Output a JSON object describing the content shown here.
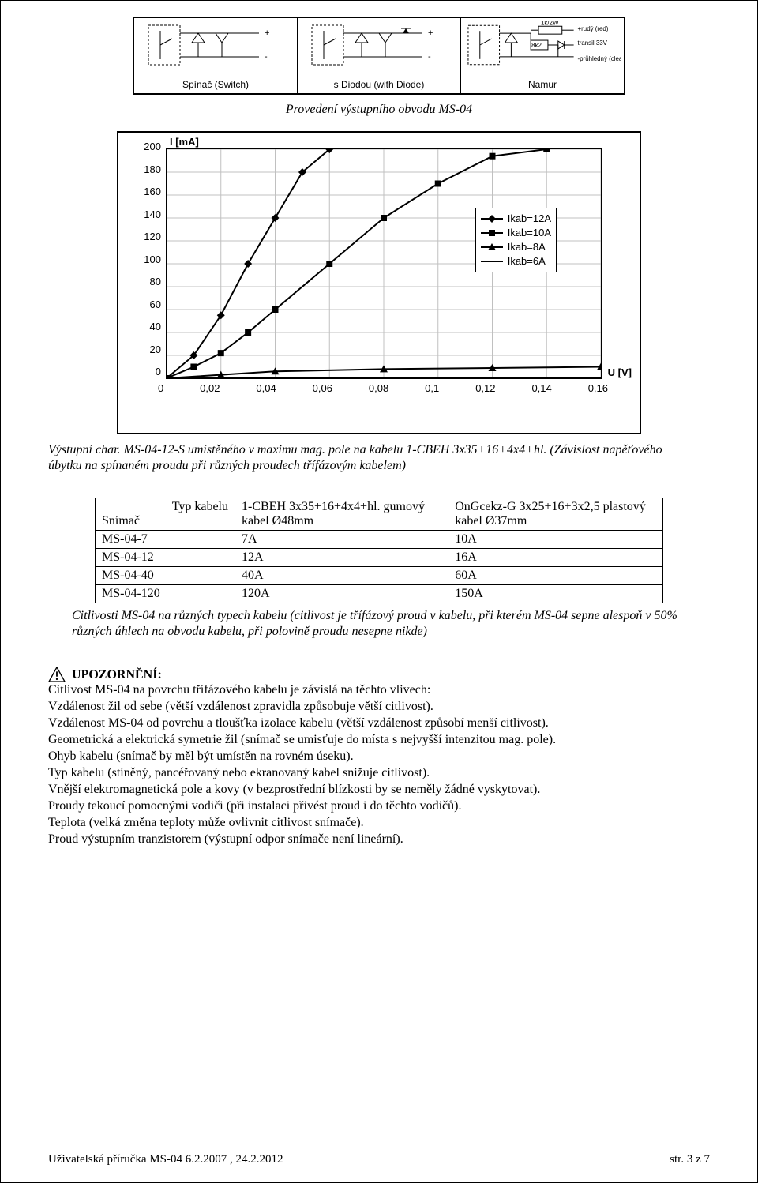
{
  "circuit": {
    "caption": "Provedení výstupního obvodu MS-04",
    "cells": [
      {
        "label": "Spínač (Switch)",
        "plus": "+",
        "minus": "-"
      },
      {
        "label": "s Diodou (with Diode)",
        "plus": "+",
        "minus": "-"
      },
      {
        "label": "Namur",
        "tags": {
          "r": "1k/2W",
          "z": "8k2",
          "d33": "transil 33V",
          "red": "+rudý (red)",
          "clr": "-průhledný (clear)"
        }
      }
    ]
  },
  "chart": {
    "y_axis": {
      "title": "I [mA]",
      "ticks": [
        "200",
        "180",
        "160",
        "140",
        "120",
        "100",
        "80",
        "60",
        "40",
        "20",
        "0"
      ]
    },
    "x_axis": {
      "title": "U [V]",
      "ticks": [
        "0",
        "0,02",
        "0,04",
        "0,06",
        "0,08",
        "0,1",
        "0,12",
        "0,14",
        "0,16"
      ]
    },
    "grid_color": "#c0c0c0",
    "line_color": "#000000",
    "background": "#ffffff",
    "series": [
      {
        "label": "Ikab=12A",
        "marker": "diamond",
        "x": [
          0,
          0.01,
          0.02,
          0.03,
          0.04,
          0.05,
          0.06
        ],
        "y": [
          0,
          20,
          55,
          100,
          140,
          180,
          200
        ]
      },
      {
        "label": "Ikab=10A",
        "marker": "square",
        "x": [
          0,
          0.01,
          0.02,
          0.03,
          0.04,
          0.06,
          0.08,
          0.1,
          0.12,
          0.14
        ],
        "y": [
          0,
          10,
          22,
          40,
          60,
          100,
          140,
          170,
          194,
          200
        ]
      },
      {
        "label": "Ikab=8A",
        "marker": "triangle",
        "x": [
          0,
          0.02,
          0.04,
          0.08,
          0.12,
          0.16
        ],
        "y": [
          0,
          3,
          6,
          8,
          9,
          10
        ]
      },
      {
        "label": "Ikab=6A",
        "marker": "none",
        "x": [
          0,
          0.16
        ],
        "y": [
          0,
          0
        ]
      }
    ],
    "caption": "Výstupní char. MS-04-12-S umístěného v maximu mag. pole na kabelu 1-CBEH 3x35+16+4x4+hl. (Závislost napěťového úbytku na spínaném proudu při různých proudech třífázovým kabelem)"
  },
  "table": {
    "head": {
      "c0": "Snímač",
      "c0_top": "Typ kabelu",
      "c1": "1-CBEH 3x35+16+4x4+hl. gumový kabel Ø48mm",
      "c2": "OnGcekz-G 3x25+16+3x2,5 plastový kabel Ø37mm"
    },
    "rows": [
      {
        "c0": "MS-04-7",
        "c1": "7A",
        "c2": "10A"
      },
      {
        "c0": "MS-04-12",
        "c1": "12A",
        "c2": "16A"
      },
      {
        "c0": "MS-04-40",
        "c1": "40A",
        "c2": "60A"
      },
      {
        "c0": "MS-04-120",
        "c1": "120A",
        "c2": "150A"
      }
    ],
    "caption": "Citlivosti MS-04 na různých typech kabelu (citlivost je třífázový proud v kabelu, při kterém MS-04 sepne alespoň v 50% různých úhlech na obvodu kabelu, při polovině proudu nesepne nikde)"
  },
  "warning": {
    "head": "UPOZORNĚNÍ:",
    "lines": [
      "Citlivost MS-04 na povrchu třífázového kabelu je závislá na těchto vlivech:",
      "Vzdálenost žil od sebe (větší vzdálenost zpravidla způsobuje větší citlivost).",
      "Vzdálenost MS-04 od povrchu a tloušťka izolace kabelu (větší vzdálenost způsobí menší citlivost).",
      "Geometrická a elektrická symetrie žil (snímač se umisťuje do místa s nejvyšší intenzitou mag. pole).",
      "Ohyb kabelu (snímač by měl být umístěn na rovném úseku).",
      "Typ kabelu (stíněný, pancéřovaný nebo ekranovaný kabel snižuje citlivost).",
      "Vnější elektromagnetická pole a kovy (v bezprostřední blízkosti by se neměly žádné vyskytovat).",
      "Proudy tekoucí pomocnými vodiči (při instalaci přivést proud i do těchto vodičů).",
      "Teplota (velká změna teploty může ovlivnit citlivost snímače).",
      "Proud výstupním tranzistorem (výstupní odpor snímače není lineární)."
    ]
  },
  "footer": {
    "left": "Uživatelská příručka MS-04   6.2.2007 , 24.2.2012",
    "right": "str. 3 z 7"
  }
}
